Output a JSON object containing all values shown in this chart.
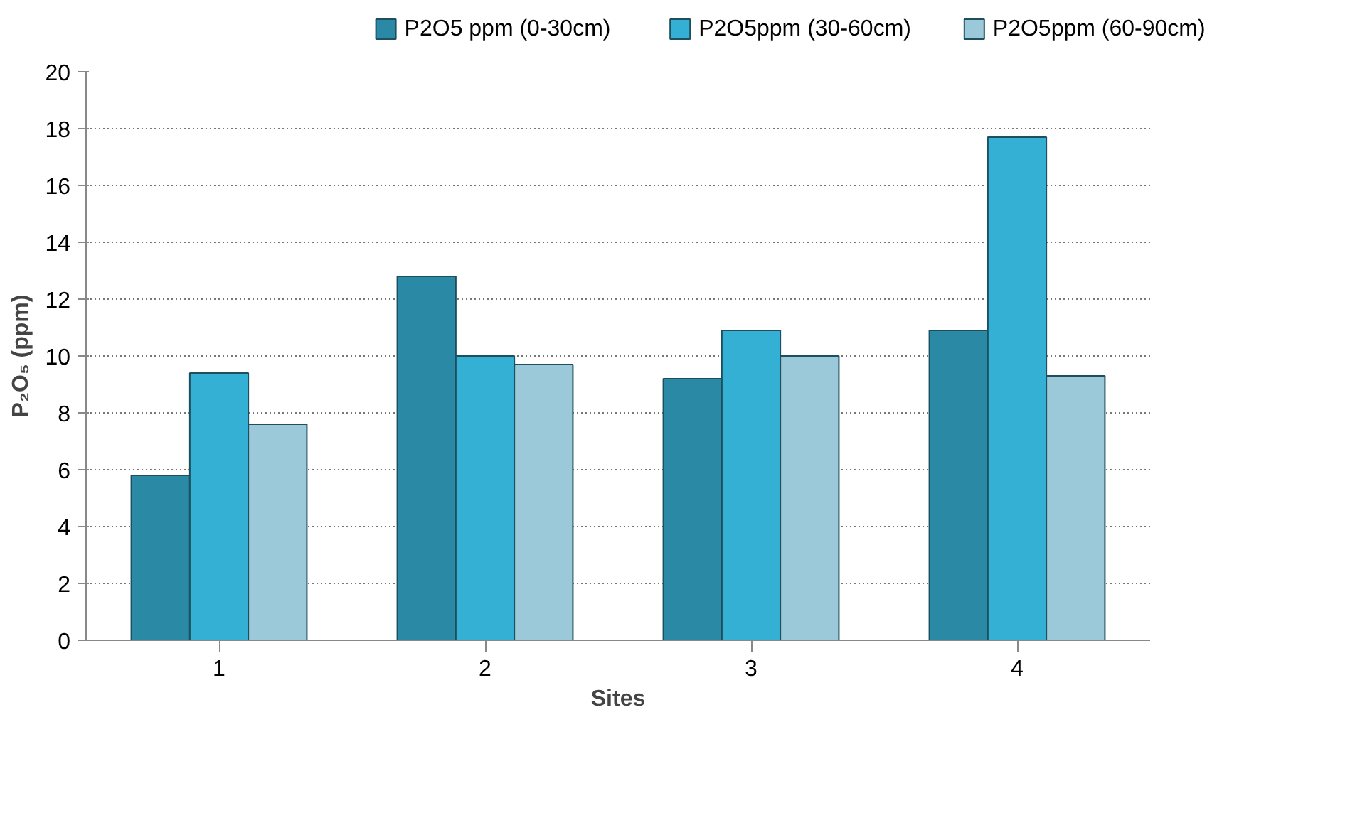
{
  "chart_data": {
    "type": "bar",
    "xlabel": "Sites",
    "ylabel": "P₂O₅ (ppm)",
    "categories": [
      "1",
      "2",
      "3",
      "4"
    ],
    "series": [
      {
        "name": "P2O5 ppm  (0-30cm)",
        "color": "#2a8aa6",
        "values": [
          5.8,
          12.8,
          9.2,
          10.9
        ]
      },
      {
        "name": "P2O5ppm  (30-60cm)",
        "color": "#33b0d4",
        "values": [
          9.4,
          10.0,
          10.9,
          17.7
        ]
      },
      {
        "name": "P2O5ppm  (60-90cm)",
        "color": "#9cc9da",
        "values": [
          7.6,
          9.7,
          10.0,
          9.3
        ]
      }
    ],
    "ylim": [
      0,
      20
    ],
    "yticks": [
      0,
      2,
      4,
      6,
      8,
      10,
      12,
      14,
      16,
      18,
      20
    ],
    "grid": "y",
    "legend": "top"
  }
}
